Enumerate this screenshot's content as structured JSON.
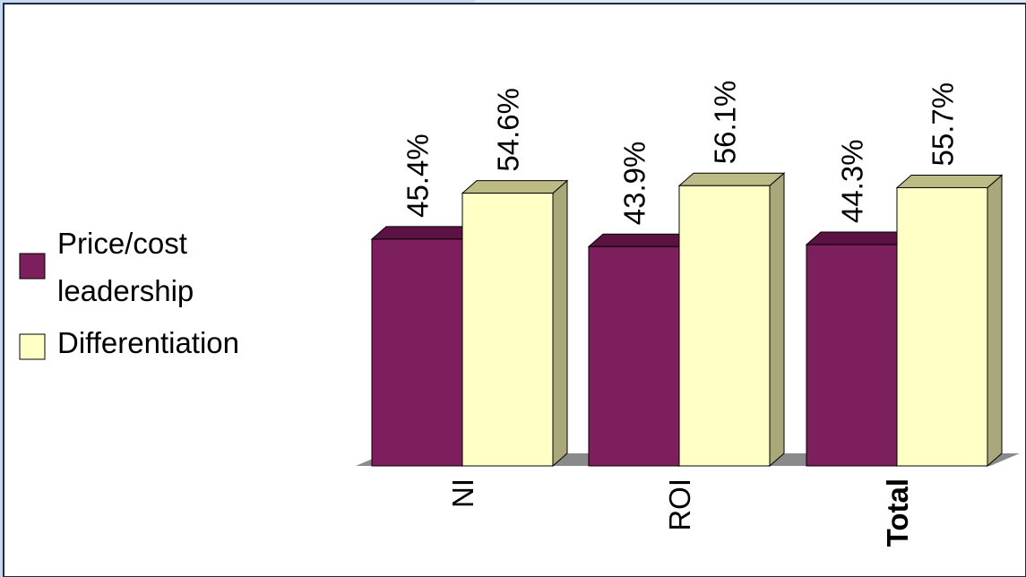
{
  "chart_data": {
    "type": "bar",
    "categories": [
      "NI",
      "ROI",
      "Total"
    ],
    "series": [
      {
        "name": "Price/cost leadership",
        "values": [
          45.4,
          43.9,
          44.3
        ]
      },
      {
        "name": "Differentiation",
        "values": [
          54.6,
          56.1,
          55.7
        ]
      }
    ],
    "value_labels": [
      [
        "45.4%",
        "43.9%",
        "44.3%"
      ],
      [
        "54.6%",
        "56.1%",
        "55.7%"
      ]
    ],
    "bold_categories": [
      "Total"
    ],
    "ylim": [
      0,
      75
    ],
    "grid": false,
    "legend_position": "left",
    "legend": {
      "items": [
        {
          "lines": [
            "Price/cost",
            "leadership"
          ]
        },
        {
          "lines": [
            "Differentiation"
          ]
        }
      ]
    }
  },
  "colors": {
    "background": "#c9d9ef",
    "panel": "#ffffff",
    "panel_border": "#1e2b44",
    "series_0_front": "#7d1f5d",
    "series_0_top": "#5c1344",
    "series_0_side": "#4a0f37",
    "series_1_front": "#ffffc6",
    "series_1_top": "#bcbb86",
    "series_1_side": "#aaa87a",
    "floor": "#8a8a8a"
  }
}
